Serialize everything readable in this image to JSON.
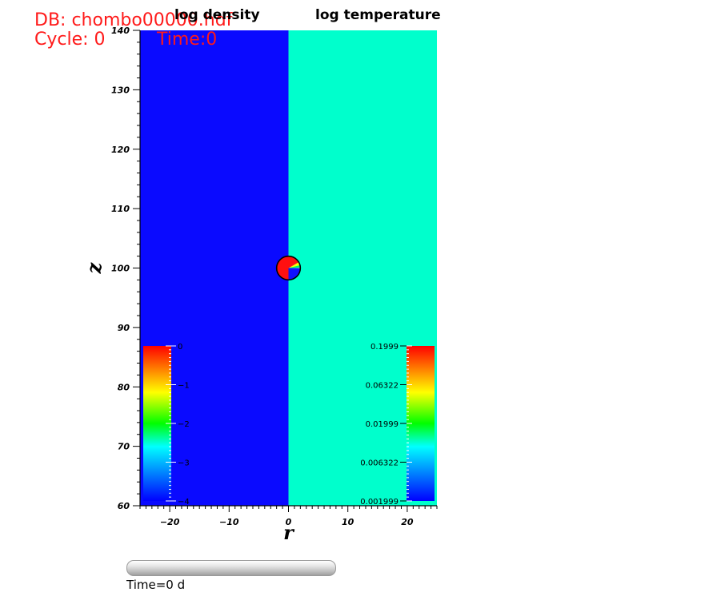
{
  "header": {
    "db_line": "DB: chombo00000.hdf",
    "cycle_line": "Cycle: 0",
    "time_line": "Time:0",
    "color": "#ff1a1a"
  },
  "panels": {
    "left_title": "log density",
    "right_title": "log temperature"
  },
  "time_slider": {
    "label": "Time=0 d",
    "progress": 0
  },
  "chart_data": {
    "type": "heatmap",
    "xlabel": "r",
    "ylabel": "z",
    "xlim": [
      -25,
      25
    ],
    "ylim": [
      60,
      140
    ],
    "x_ticks": [
      -20,
      -10,
      0,
      10,
      20
    ],
    "x_tick_labels": [
      "−20",
      "−10",
      "0",
      "10",
      "20"
    ],
    "y_ticks": [
      60,
      70,
      80,
      90,
      100,
      110,
      120,
      130,
      140
    ],
    "y_tick_labels": [
      "60",
      "70",
      "80",
      "90",
      "100",
      "110",
      "120",
      "130",
      "140"
    ],
    "fields": [
      {
        "name": "log density",
        "region": "r < 0",
        "color": "#0a0aff"
      },
      {
        "name": "log temperature",
        "region": "r > 0",
        "color": "#00ffcc"
      }
    ],
    "cloud": {
      "center": [
        0,
        100
      ],
      "radius": 2
    },
    "colorbars": [
      {
        "field": "log density",
        "placement": "bottom-left",
        "tick_values": [
          0,
          -1,
          -2,
          -3,
          -4
        ],
        "tick_labels": [
          "0",
          "−1",
          "−2",
          "−3",
          "−4"
        ]
      },
      {
        "field": "log temperature",
        "placement": "bottom-right",
        "tick_values": [
          0.1999,
          0.06322,
          0.01999,
          0.006322,
          0.001999
        ],
        "tick_labels": [
          "0.1999",
          "0.06322",
          "0.01999",
          "0.006322",
          "0.001999"
        ]
      }
    ]
  }
}
